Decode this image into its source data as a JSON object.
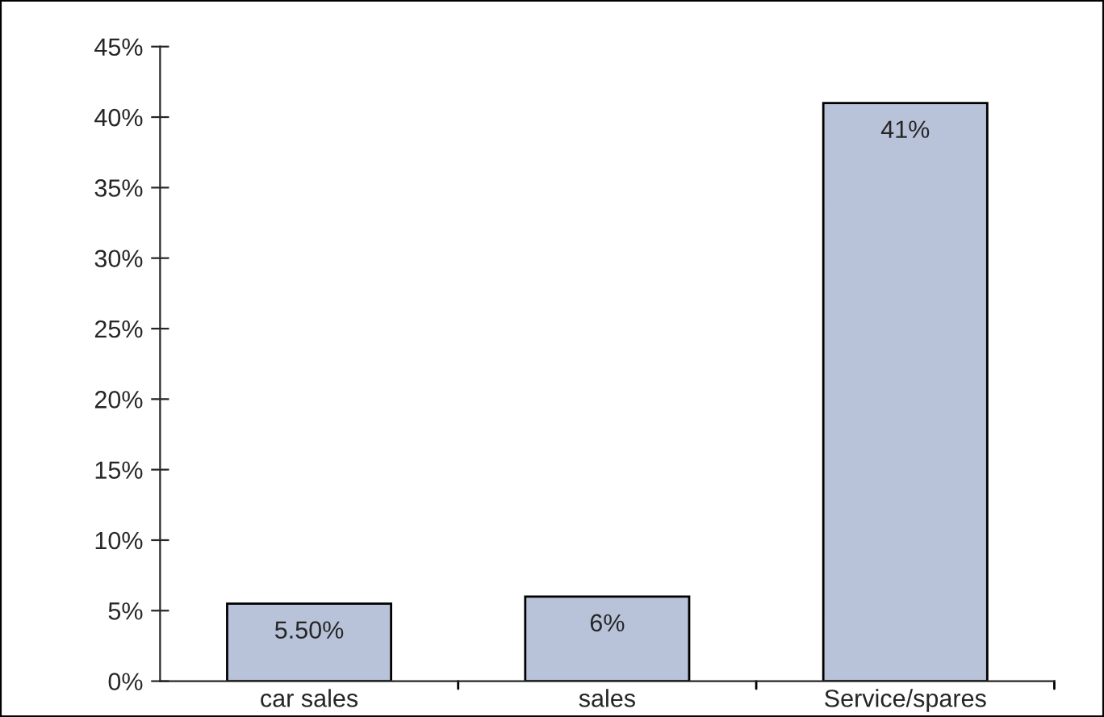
{
  "chart_data": {
    "type": "bar",
    "categories": [
      "car sales",
      "sales",
      "Service/spares"
    ],
    "values": [
      5.5,
      6,
      41
    ],
    "value_labels": [
      "5.50%",
      "6%",
      "41%"
    ],
    "color": "#b8c2d8",
    "ylim": [
      0,
      45
    ],
    "yticks": [
      {
        "value": 0,
        "label": "0%"
      },
      {
        "value": 5,
        "label": "5%"
      },
      {
        "value": 10,
        "label": "10%"
      },
      {
        "value": 15,
        "label": "15%"
      },
      {
        "value": 20,
        "label": "20%"
      },
      {
        "value": 25,
        "label": "25%"
      },
      {
        "value": 30,
        "label": "30%"
      },
      {
        "value": 35,
        "label": "35%"
      },
      {
        "value": 40,
        "label": "40%"
      },
      {
        "value": 45,
        "label": "45%"
      }
    ],
    "grid": false,
    "legend": false
  }
}
